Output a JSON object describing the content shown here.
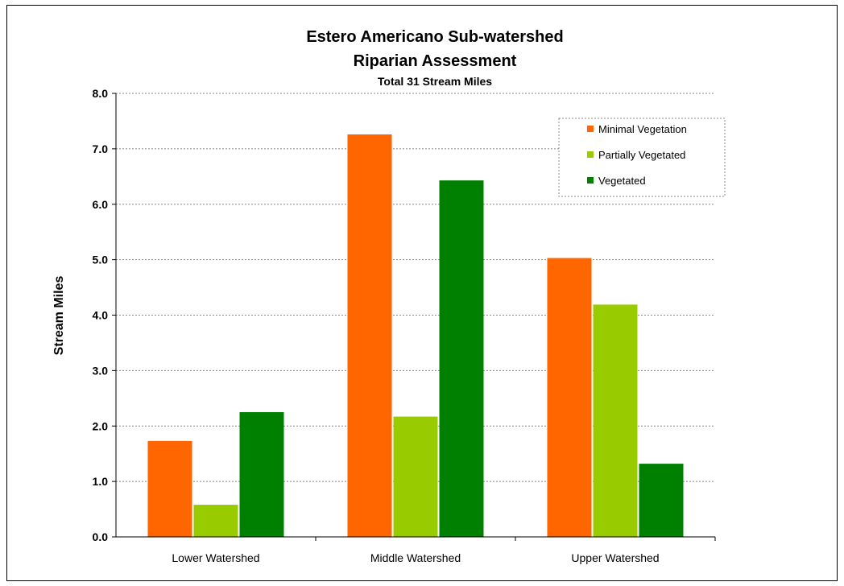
{
  "chart_data": {
    "type": "bar",
    "title": "Estero Americano Sub-watershed",
    "title_line2": "Riparian Assessment",
    "subtitle": "Total 31 Stream Miles",
    "ylabel": "Stream Miles",
    "xlabel": "",
    "ylim": [
      0,
      8
    ],
    "y_ticks": [
      "0.0",
      "1.0",
      "2.0",
      "3.0",
      "4.0",
      "5.0",
      "6.0",
      "7.0",
      "8.0"
    ],
    "categories": [
      "Lower Watershed",
      "Middle Watershed",
      "Upper Watershed"
    ],
    "series": [
      {
        "name": "Minimal Vegetation",
        "color": "#ff6600",
        "values": [
          1.73,
          7.26,
          5.03
        ]
      },
      {
        "name": "Partially Vegetated",
        "color": "#99cc00",
        "values": [
          0.58,
          2.17,
          4.19
        ]
      },
      {
        "name": "Vegetated",
        "color": "#008000",
        "values": [
          2.25,
          6.43,
          1.32
        ]
      }
    ],
    "grid": true,
    "legend_position": "top-right"
  }
}
